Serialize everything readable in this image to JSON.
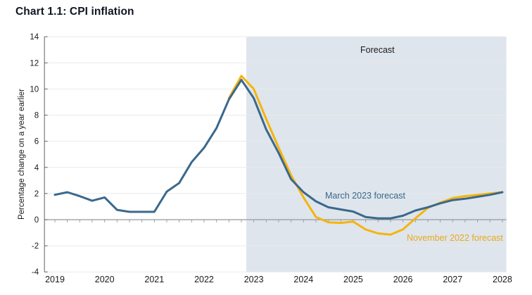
{
  "header": {
    "title": "Chart 1.1: CPI inflation"
  },
  "colors": {
    "march_line": "#3a688c",
    "november_line": "#f5b40d",
    "forecast_shading": "#dee5ec",
    "gridline": "#eaeaea",
    "axis": "#5f6368",
    "zero_axis": "#94999e",
    "tick_text": "#1a1a1a"
  },
  "chart_data": {
    "type": "line",
    "title": "Chart 1.1: CPI inflation",
    "xlabel": "",
    "ylabel": "Percentage change on a year earlier",
    "ylim": [
      -4,
      14
    ],
    "xlim": [
      2018.79,
      2028.08
    ],
    "y_ticks": [
      -4,
      -2,
      0,
      2,
      4,
      6,
      8,
      10,
      12,
      14
    ],
    "x_ticks": [
      2019,
      2020,
      2021,
      2022,
      2023,
      2024,
      2025,
      2026,
      2027,
      2028
    ],
    "x_tick_labels": [
      "2019",
      "2020",
      "2021",
      "2022",
      "2023",
      "2024",
      "2025",
      "2026",
      "2027",
      "2028"
    ],
    "grid": "horizontal, faint, at every 2 units",
    "legend_position": "inline labels next to lines",
    "quarter_tick_step": 0.25,
    "forecast_region": {
      "label": "Forecast",
      "x_start": 2022.85,
      "x_end": 2028.08,
      "note": "shaded light blue-grey band covering full plot height"
    },
    "series": [
      {
        "name": "November 2022 forecast",
        "color": "#f5b40d",
        "x": [
          2022.5,
          2022.75,
          2023.0,
          2023.25,
          2023.5,
          2023.75,
          2024.0,
          2024.25,
          2024.5,
          2024.75,
          2025.0,
          2025.25,
          2025.5,
          2025.75,
          2026.0,
          2026.25,
          2026.5,
          2026.75,
          2027.0,
          2027.25,
          2027.5,
          2027.75,
          2028.0
        ],
        "values": [
          9.3,
          11.0,
          10.0,
          7.7,
          5.5,
          3.4,
          1.7,
          0.2,
          -0.2,
          -0.25,
          -0.15,
          -0.75,
          -1.05,
          -1.15,
          -0.75,
          0.1,
          0.9,
          1.3,
          1.65,
          1.8,
          1.9,
          2.0,
          2.1
        ]
      },
      {
        "name": "March 2023 forecast",
        "color": "#3a688c",
        "x": [
          2019.0,
          2019.25,
          2019.5,
          2019.75,
          2020.0,
          2020.25,
          2020.5,
          2020.75,
          2021.0,
          2021.25,
          2021.5,
          2021.75,
          2022.0,
          2022.25,
          2022.5,
          2022.75,
          2023.0,
          2023.25,
          2023.5,
          2023.75,
          2024.0,
          2024.25,
          2024.5,
          2024.75,
          2025.0,
          2025.25,
          2025.5,
          2025.75,
          2026.0,
          2026.25,
          2026.5,
          2026.75,
          2027.0,
          2027.25,
          2027.5,
          2027.75,
          2028.0
        ],
        "values": [
          1.9,
          2.1,
          1.8,
          1.45,
          1.7,
          0.75,
          0.6,
          0.6,
          0.6,
          2.15,
          2.8,
          4.4,
          5.5,
          7.0,
          9.2,
          10.7,
          9.3,
          6.9,
          5.1,
          3.1,
          2.1,
          1.4,
          0.95,
          0.78,
          0.62,
          0.2,
          0.1,
          0.1,
          0.3,
          0.7,
          0.95,
          1.25,
          1.5,
          1.6,
          1.75,
          1.9,
          2.1
        ]
      }
    ]
  }
}
